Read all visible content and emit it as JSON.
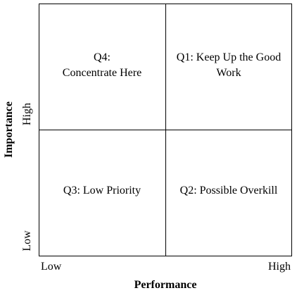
{
  "quadrants": {
    "q4": {
      "line1": "Q4:",
      "line2": "Concentrate Here"
    },
    "q1": {
      "line1": "Q1: Keep Up the Good",
      "line2": "Work"
    },
    "q3": {
      "line1": "Q3: Low Priority"
    },
    "q2": {
      "line1": "Q2: Possible Overkill"
    }
  },
  "x_axis": {
    "title": "Performance",
    "low": "Low",
    "high": "High"
  },
  "y_axis": {
    "title": "Importance",
    "low": "Low",
    "high": "High"
  }
}
